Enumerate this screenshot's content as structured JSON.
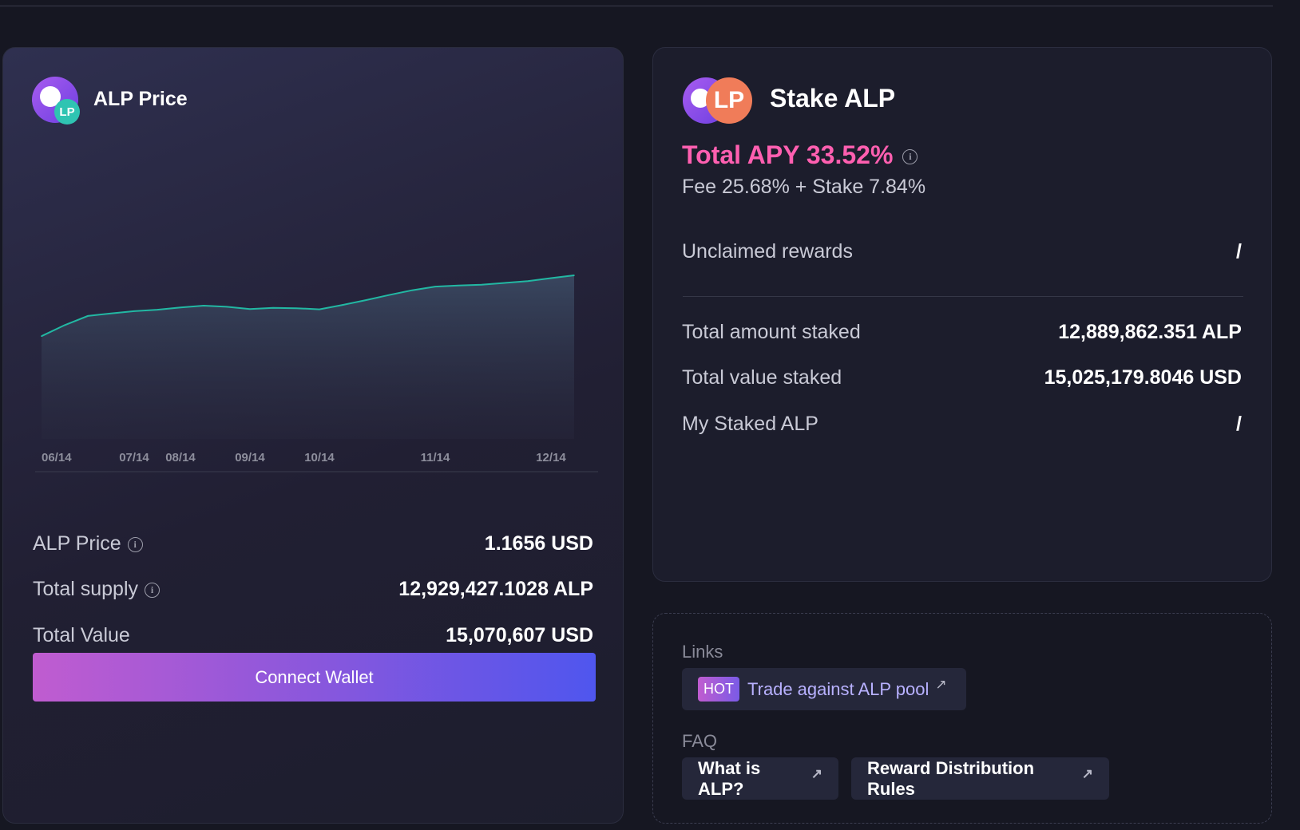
{
  "price_card": {
    "title": "ALP Price",
    "logo_badge": "LP",
    "rows": [
      {
        "label": "ALP Price",
        "value": "1.1656 USD"
      },
      {
        "label": "Total supply",
        "value": "12,929,427.1028 ALP"
      },
      {
        "label": "Total Value",
        "value": "15,070,607 USD"
      }
    ],
    "connect_button": "Connect Wallet"
  },
  "chart_data": {
    "type": "area",
    "title": "",
    "xlabel": "",
    "ylabel": "",
    "x_ticks": [
      "06/14",
      "07/14",
      "08/14",
      "09/14",
      "10/14",
      "11/14",
      "12/14"
    ],
    "x": [
      "06/14",
      "06/20",
      "06/28",
      "07/05",
      "07/14",
      "07/28",
      "08/14",
      "08/28",
      "09/03",
      "09/14",
      "09/28",
      "10/05",
      "10/14",
      "10/20",
      "10/28",
      "11/03",
      "11/08",
      "11/14",
      "11/20",
      "11/28",
      "12/03",
      "12/08",
      "12/14",
      "12/18"
    ],
    "values": [
      1.0,
      1.03,
      1.055,
      1.062,
      1.068,
      1.072,
      1.078,
      1.083,
      1.08,
      1.074,
      1.077,
      1.076,
      1.073,
      1.085,
      1.098,
      1.112,
      1.125,
      1.135,
      1.138,
      1.14,
      1.145,
      1.15,
      1.158,
      1.1656
    ],
    "ylim": [
      0.72,
      1.22
    ],
    "grid": false,
    "line_color": "#22b8a3"
  },
  "stake_card": {
    "title": "Stake ALP",
    "logo_badge": "LP",
    "apy": "Total APY 33.52%",
    "apy_breakdown": "Fee 25.68% + Stake 7.84%",
    "unclaimed_label": "Unclaimed rewards",
    "unclaimed_value": "/",
    "rows": [
      {
        "label": "Total amount staked",
        "value": "12,889,862.351 ALP"
      },
      {
        "label": "Total value staked",
        "value": "15,025,179.8046 USD"
      },
      {
        "label": "My Staked ALP",
        "value": "/"
      }
    ]
  },
  "links_card": {
    "links_label": "Links",
    "hot_badge": "HOT",
    "trade_word": "Trade",
    "trade_rest": "against ALP pool",
    "faq_label": "FAQ",
    "faq_items": [
      "What is ALP?",
      "Reward Distribution Rules"
    ]
  },
  "colors": {
    "accent_pink": "#ff5fb0",
    "chart_line": "#22b8a3",
    "lp_orange": "#f07c59",
    "lp_teal": "#2fc4b2"
  }
}
